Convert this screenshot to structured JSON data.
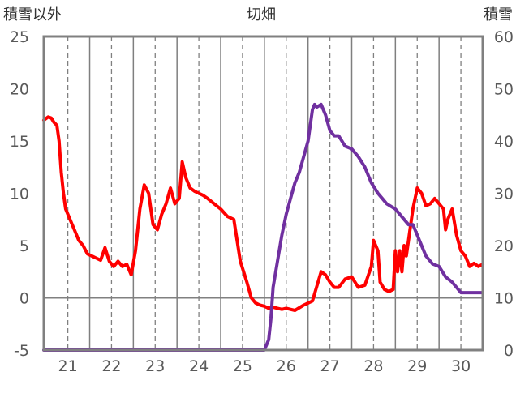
{
  "chart_data": {
    "type": "line",
    "title": "切畑",
    "y_left_label": "積雪以外",
    "y_right_label": "積雪",
    "y_left_lim": [
      -5,
      25
    ],
    "y_right_lim": [
      0,
      60
    ],
    "y_left_ticks": [
      "25",
      "20",
      "15",
      "10",
      "5",
      "0",
      "-5"
    ],
    "y_right_ticks": [
      "60",
      "50",
      "40",
      "30",
      "20",
      "10",
      "0"
    ],
    "x_lim": [
      20.45,
      30.5
    ],
    "x_ticks": [
      "21",
      "22",
      "23",
      "24",
      "25",
      "26",
      "27",
      "28",
      "29",
      "30"
    ],
    "grid": "dashed vertical lines at each day, solid line at left value 0",
    "series": [
      {
        "axis": "left",
        "color": "#ff0000",
        "x": [
          20.45,
          20.55,
          20.62,
          20.68,
          20.75,
          20.8,
          20.85,
          20.9,
          20.95,
          21.05,
          21.15,
          21.25,
          21.35,
          21.45,
          21.55,
          21.65,
          21.75,
          21.85,
          21.95,
          22.05,
          22.15,
          22.25,
          22.35,
          22.45,
          22.55,
          22.65,
          22.75,
          22.85,
          22.95,
          23.05,
          23.15,
          23.25,
          23.35,
          23.45,
          23.55,
          23.62,
          23.7,
          23.8,
          23.9,
          24.0,
          24.1,
          24.2,
          24.35,
          24.5,
          24.65,
          24.8,
          24.95,
          25.1,
          25.2,
          25.3,
          25.4,
          25.5,
          25.6,
          25.7,
          25.8,
          25.9,
          26.0,
          26.2,
          26.4,
          26.6,
          26.8,
          26.9,
          27.0,
          27.1,
          27.2,
          27.35,
          27.5,
          27.65,
          27.8,
          27.95,
          28.0,
          28.1,
          28.15,
          28.25,
          28.35,
          28.45,
          28.5,
          28.55,
          28.6,
          28.65,
          28.7,
          28.75,
          28.8,
          28.9,
          29.0,
          29.1,
          29.2,
          29.3,
          29.4,
          29.5,
          29.6,
          29.65,
          29.7,
          29.8,
          29.9,
          30.0,
          30.1,
          30.2,
          30.3,
          30.4,
          30.5
        ],
        "y": [
          17,
          17.3,
          17.2,
          16.8,
          16.5,
          15,
          12,
          10,
          8.5,
          7.5,
          6.5,
          5.5,
          5,
          4.2,
          4,
          3.8,
          3.6,
          4.8,
          3.5,
          3,
          3.5,
          3,
          3.2,
          2.2,
          4.5,
          8.5,
          10.8,
          10,
          7,
          6.5,
          8,
          9,
          10.5,
          9,
          9.5,
          13,
          11.5,
          10.5,
          10.2,
          10,
          9.8,
          9.5,
          9,
          8.5,
          7.8,
          7.5,
          3.5,
          1.5,
          0,
          -0.5,
          -0.7,
          -0.8,
          -1,
          -0.9,
          -1,
          -1.1,
          -1,
          -1.2,
          -0.7,
          -0.3,
          2.5,
          2.2,
          1.5,
          1,
          1,
          1.8,
          2,
          1,
          1.2,
          3,
          5.5,
          4.5,
          1.5,
          0.8,
          0.6,
          0.8,
          4.5,
          2.5,
          4.5,
          2.5,
          5,
          4,
          5.5,
          8.5,
          10.5,
          10,
          8.8,
          9,
          9.5,
          9,
          8.5,
          6.5,
          7.5,
          8.5,
          6,
          4.5,
          4,
          3,
          3.3,
          3,
          3.2
        ]
      },
      {
        "axis": "right",
        "color": "#7030a0",
        "x": [
          20.45,
          21,
          22,
          23,
          24,
          25,
          25.5,
          25.6,
          25.65,
          25.7,
          25.8,
          25.9,
          26.0,
          26.1,
          26.2,
          26.3,
          26.4,
          26.5,
          26.55,
          26.6,
          26.65,
          26.7,
          26.8,
          26.9,
          27.0,
          27.1,
          27.2,
          27.35,
          27.5,
          27.65,
          27.8,
          27.95,
          28.1,
          28.2,
          28.3,
          28.5,
          28.6,
          28.7,
          28.8,
          28.9,
          29.0,
          29.1,
          29.2,
          29.35,
          29.5,
          29.65,
          29.8,
          29.9,
          30.0,
          30.2,
          30.4,
          30.5
        ],
        "y": [
          0,
          0,
          0,
          0,
          0,
          0,
          0,
          2,
          6,
          12,
          17,
          22,
          26,
          29,
          32,
          34,
          37,
          40,
          43,
          46,
          47,
          46.5,
          47,
          45,
          42,
          41,
          41,
          39,
          38.5,
          37,
          35,
          32,
          30,
          29,
          28,
          27,
          26,
          25,
          24,
          24,
          22,
          20,
          18,
          16.5,
          16,
          14,
          13,
          12,
          11,
          11,
          11,
          11
        ]
      }
    ]
  }
}
